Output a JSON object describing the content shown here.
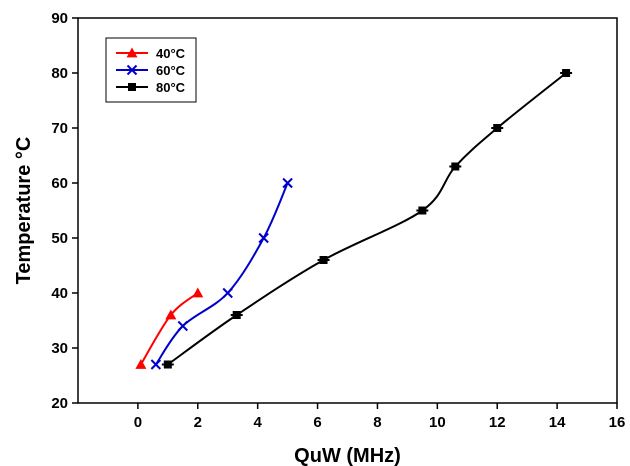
{
  "chart_data": {
    "type": "line",
    "title": "",
    "xlabel": "QuW (MHz)",
    "ylabel": "Temperature °C",
    "xlim": [
      -2,
      16
    ],
    "ylim": [
      20,
      90
    ],
    "xticks": [
      0,
      2,
      4,
      6,
      8,
      10,
      12,
      14,
      16
    ],
    "yticks": [
      20,
      30,
      40,
      50,
      60,
      70,
      80,
      90
    ],
    "grid": false,
    "legend_position": "top-left",
    "series": [
      {
        "name": "40°C",
        "color": "#ff0000",
        "marker": "triangle",
        "x": [
          0.1,
          1.1,
          2.0
        ],
        "y": [
          27,
          36,
          40
        ]
      },
      {
        "name": "60°C",
        "color": "#0000cc",
        "marker": "x",
        "x": [
          0.6,
          1.5,
          3.0,
          4.2,
          5.0
        ],
        "y": [
          27,
          34,
          40,
          50,
          60
        ]
      },
      {
        "name": "80°C",
        "color": "#000000",
        "marker": "square",
        "x": [
          1.0,
          3.3,
          6.2,
          9.5,
          10.6,
          12.0,
          14.3
        ],
        "y": [
          27,
          36,
          46,
          55,
          63,
          70,
          80
        ]
      }
    ]
  }
}
